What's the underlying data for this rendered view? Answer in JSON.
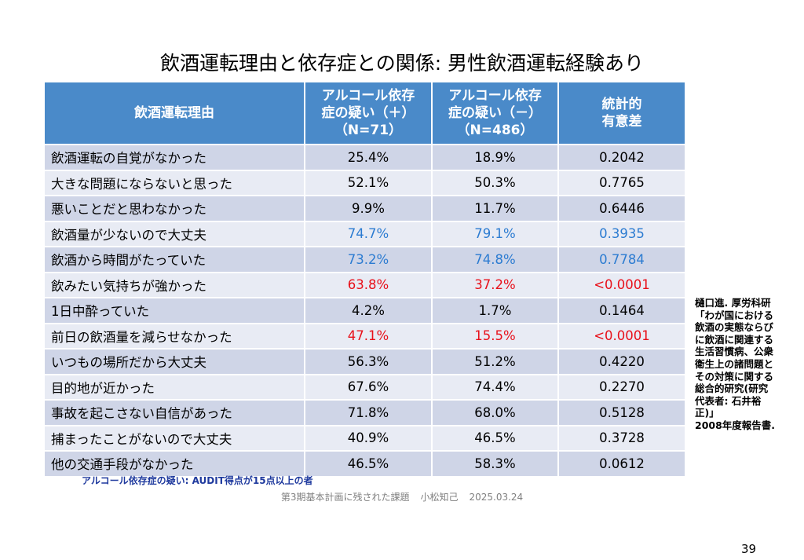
{
  "title": "飲酒運転理由と依存症との関係: 男性飲酒運転経験あり",
  "table": {
    "headers": [
      [
        "飲酒運転理由"
      ],
      [
        "アルコール依存",
        "症の疑い（＋）",
        "（N=71）"
      ],
      [
        "アルコール依存",
        "症の疑い（－）",
        "（N=486）"
      ],
      [
        "統計的",
        "有意差"
      ]
    ],
    "rows": [
      {
        "reason": "飲酒運転の自覚がなかった",
        "plus": "25.4%",
        "minus": "18.9%",
        "p": "0.2042",
        "color": "#000000"
      },
      {
        "reason": "大きな問題にならないと思った",
        "plus": "52.1%",
        "minus": "50.3%",
        "p": "0.7765",
        "color": "#000000"
      },
      {
        "reason": "悪いことだと思わなかった",
        "plus": "9.9%",
        "minus": "11.7%",
        "p": "0.6446",
        "color": "#000000"
      },
      {
        "reason": "飲酒量が少ないので大丈夫",
        "plus": "74.7%",
        "minus": "79.1%",
        "p": "0.3935",
        "color": "#2b7bd1"
      },
      {
        "reason": "飲酒から時間がたっていた",
        "plus": "73.2%",
        "minus": "74.8%",
        "p": "0.7784",
        "color": "#2b7bd1"
      },
      {
        "reason": "飲みたい気持ちが強かった",
        "plus": "63.8%",
        "minus": "37.2%",
        "p": "<0.0001",
        "color": "#e8101a"
      },
      {
        "reason": "1日中酔っていた",
        "plus": "4.2%",
        "minus": "1.7%",
        "p": "0.1464",
        "color": "#000000"
      },
      {
        "reason": "前日の飲酒量を減らせなかった",
        "plus": "47.1%",
        "minus": "15.5%",
        "p": "<0.0001",
        "color": "#e8101a"
      },
      {
        "reason": "いつもの場所だから大丈夫",
        "plus": "56.3%",
        "minus": "51.2%",
        "p": "0.4220",
        "color": "#000000"
      },
      {
        "reason": "目的地が近かった",
        "plus": "67.6%",
        "minus": "74.4%",
        "p": "0.2270",
        "color": "#000000"
      },
      {
        "reason": "事故を起こさない自信があった",
        "plus": "71.8%",
        "minus": "68.0%",
        "p": "0.5128",
        "color": "#000000"
      },
      {
        "reason": "捕まったことがないので大丈夫",
        "plus": "40.9%",
        "minus": "46.5%",
        "p": "0.3728",
        "color": "#000000"
      },
      {
        "reason": "他の交通手段がなかった",
        "plus": "46.5%",
        "minus": "58.3%",
        "p": "0.0612",
        "color": "#000000"
      }
    ]
  },
  "note": "アルコール依存症の疑い: AUDIT得点が15点以上の者",
  "footer": {
    "text": "第3期基本計画に残された課題",
    "author": "小松知己",
    "date": "2025.03.24"
  },
  "citation": [
    "樋口進. 厚労科研",
    "「わが国における",
    "飲酒の実態ならび",
    "に飲酒に関連する",
    "生活習慣病、公衆",
    "衛生上の諸問題と",
    "その対策に関する",
    "総合的研究(研究",
    "代表者: 石井裕",
    "正)」",
    "2008年度報告書."
  ],
  "page_number": "39"
}
